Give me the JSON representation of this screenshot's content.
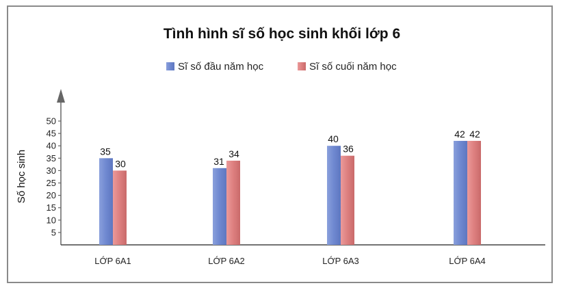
{
  "chart_data": {
    "type": "bar",
    "title": "Tình hình sĩ số học sinh khối lớp 6",
    "xlabel": "",
    "ylabel": "Số học sinh",
    "categories": [
      "LỚP 6A1",
      "LỚP 6A2",
      "LỚP 6A3",
      "LỚP 6A4"
    ],
    "series": [
      {
        "name": "Sĩ số đầu năm học",
        "values": [
          35,
          31,
          40,
          42
        ],
        "color": "#7b93d6"
      },
      {
        "name": "Sĩ số cuối năm học",
        "values": [
          30,
          34,
          36,
          42
        ],
        "color": "#e08585"
      }
    ],
    "ylim": [
      0,
      50
    ],
    "yticks": [
      5,
      10,
      15,
      20,
      25,
      30,
      35,
      40,
      45,
      50
    ],
    "grid": false,
    "legend_position": "top-center"
  }
}
